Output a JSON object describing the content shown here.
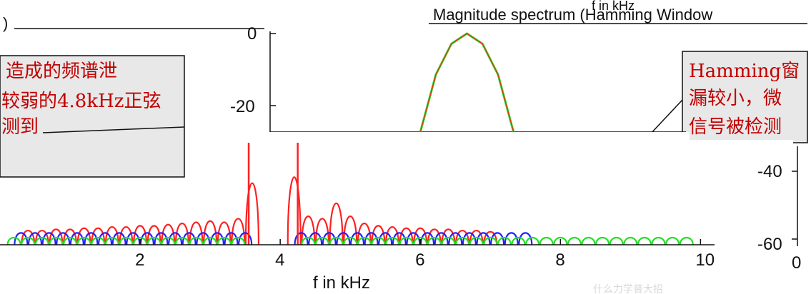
{
  "chart_data": {
    "type": "line",
    "title_left": ")",
    "title_right": "Magnitude spectrum (Hamming Window",
    "title_top_fragment": "f in kHz",
    "xlabel": "f in kHz",
    "xlim": [
      0,
      10.4
    ],
    "ylim": [
      -64,
      2
    ],
    "x_ticks": [
      "2",
      "4",
      "6",
      "8",
      "10"
    ],
    "x_tick_values": [
      2,
      4,
      6,
      8,
      10
    ],
    "y_ticks_inset": [
      "0",
      "-20"
    ],
    "y_ticks_right": [
      "-40",
      "-60"
    ],
    "right_zero_label": "0",
    "series": [
      {
        "color": "#ff2020",
        "peaks_x": [
          0.4,
          0.6,
          0.8,
          1.0,
          1.2,
          1.4,
          1.6,
          1.8,
          2.0,
          2.2,
          2.4,
          2.6,
          2.8,
          3.0,
          3.2,
          3.4,
          3.6,
          4.2,
          4.4,
          4.6,
          4.8,
          5.0,
          5.2,
          5.4,
          5.6,
          5.8,
          6.0,
          6.2,
          6.4,
          6.6,
          6.8,
          7.0
        ],
        "peaks_y": [
          -50,
          -50,
          -49,
          -49,
          -48,
          -48,
          -47,
          -47,
          -46,
          -46,
          -45,
          -44,
          -43,
          -42,
          -43,
          -40,
          -10,
          -5,
          -38,
          -40,
          -27,
          -38,
          -44,
          -46,
          -47,
          -48,
          -48,
          -49,
          -49,
          -50,
          -50,
          -51
        ]
      },
      {
        "color": "#2020ff",
        "peaks_x": [
          0.3,
          0.5,
          0.7,
          0.9,
          1.1,
          1.3,
          1.5,
          1.7,
          1.9,
          2.1,
          2.3,
          2.5,
          2.7,
          2.9,
          3.1,
          3.3,
          3.5,
          4.3,
          4.5,
          4.7,
          4.9,
          5.1,
          5.3,
          5.5,
          5.7,
          5.9,
          6.1,
          6.3,
          6.5,
          6.7,
          6.9,
          7.1,
          7.3,
          7.5
        ],
        "peaks_y": [
          -52,
          -52,
          -52,
          -52,
          -52,
          -52,
          -52,
          -52,
          -52,
          -52,
          -52,
          -52,
          -52,
          -52,
          -52,
          -52,
          -52,
          -52,
          -52,
          -52,
          -52,
          -52,
          -52,
          -52,
          -52,
          -52,
          -52,
          -52,
          -52,
          -52,
          -52,
          -52,
          -52,
          -52
        ]
      },
      {
        "color": "#20e020",
        "peaks_x": [
          0.2,
          0.4,
          0.6,
          0.8,
          1.0,
          1.2,
          1.4,
          1.6,
          1.8,
          2.0,
          2.2,
          2.4,
          2.6,
          2.8,
          3.0,
          3.2,
          3.4,
          4.4,
          4.6,
          4.8,
          5.0,
          5.2,
          5.4,
          5.6,
          5.8,
          6.0,
          6.2,
          6.4,
          6.6,
          6.8,
          7.0,
          7.2,
          7.4,
          7.6,
          7.8,
          8.0,
          8.2,
          8.4,
          8.6,
          8.8,
          9.0,
          9.2,
          9.4,
          9.6,
          9.8
        ],
        "peaks_y": [
          -56,
          -56,
          -56,
          -56,
          -56,
          -56,
          -56,
          -56,
          -56,
          -56,
          -56,
          -56,
          -56,
          -56,
          -56,
          -56,
          -56,
          -56,
          -56,
          -56,
          -56,
          -56,
          -56,
          -56,
          -56,
          -56,
          -56,
          -56,
          -56,
          -56,
          -56,
          -56,
          -56,
          -56,
          -56,
          -56,
          -56,
          -56,
          -56,
          -56,
          -56,
          -56,
          -56,
          -56,
          -56
        ]
      }
    ],
    "inset_peak": {
      "x": [
        7.45,
        7.6,
        7.75,
        7.9,
        8.05,
        8.2,
        8.35
      ],
      "y": [
        -48,
        -20,
        -5,
        0,
        -5,
        -20,
        -48
      ]
    }
  },
  "annotations": {
    "left_box": [
      "造成的频谱泄",
      "较弱的4.8kHz正弦",
      "测到"
    ],
    "right_box": [
      "Hamming窗",
      "漏较小，微",
      "信号被检测"
    ],
    "watermark": "什么力学普大招"
  },
  "colors": {
    "red": "#ff2020",
    "blue": "#2020ff",
    "green": "#20e020"
  }
}
